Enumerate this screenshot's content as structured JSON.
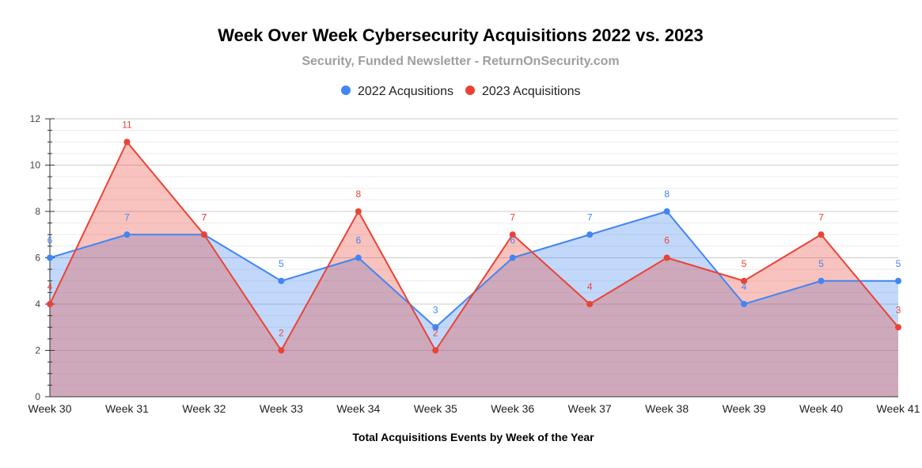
{
  "chart_data": {
    "type": "area",
    "title": "Week Over Week Cybersecurity Acquisitions 2022 vs. 2023",
    "subtitle": "Security, Funded Newsletter - ReturnOnSecurity.com",
    "xlabel": "Total Acquisitions Events by Week of the Year",
    "ylabel": "",
    "ylim": [
      0,
      12
    ],
    "y_ticks": [
      0,
      2,
      4,
      6,
      8,
      10,
      12
    ],
    "grid": true,
    "legend_position": "top-center",
    "categories": [
      "Week 30",
      "Week 31",
      "Week 32",
      "Week 33",
      "Week 34",
      "Week 35",
      "Week 36",
      "Week 37",
      "Week 38",
      "Week 39",
      "Week 40",
      "Week 41"
    ],
    "series": [
      {
        "name": "2022 Acqusitions",
        "color": "#4285f4",
        "fill": "#4285f4",
        "values": [
          6,
          7,
          7,
          5,
          6,
          3,
          6,
          7,
          8,
          4,
          5,
          5
        ]
      },
      {
        "name": "2023 Acquisitions",
        "color": "#ea4335",
        "fill": "#ea4335",
        "values": [
          4,
          11,
          7,
          2,
          8,
          2,
          7,
          4,
          6,
          5,
          7,
          3
        ]
      }
    ]
  }
}
